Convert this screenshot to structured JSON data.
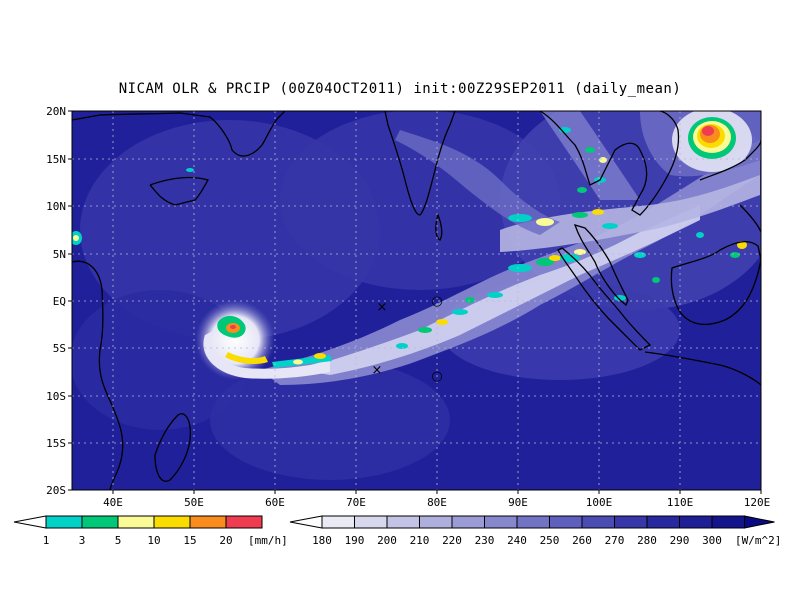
{
  "title": "NICAM OLR & PRCIP (00Z04OCT2011) init:00Z29SEP2011 (daily_mean)",
  "map": {
    "lon_range": [
      35,
      120
    ],
    "lat_range": [
      -20,
      20
    ],
    "grid": true,
    "lat_ticks": [
      "20N",
      "15N",
      "10N",
      "5N",
      "EQ",
      "5S",
      "10S",
      "15S",
      "20S"
    ],
    "lon_ticks": [
      "40E",
      "50E",
      "60E",
      "70E",
      "80E",
      "90E",
      "100E",
      "110E",
      "120E"
    ],
    "markers": [
      {
        "symbol": "×",
        "lon": 73.0,
        "lat": -0.7
      },
      {
        "symbol": "×",
        "lon": 72.5,
        "lat": -7.3
      },
      {
        "symbol": "○",
        "lon": 80.0,
        "lat": 0.0
      },
      {
        "symbol": "○",
        "lon": 80.0,
        "lat": -8.0
      }
    ]
  },
  "precip_colorbar": {
    "unit": "[mm/h]",
    "labels": [
      "1",
      "3",
      "5",
      "10",
      "15",
      "20"
    ],
    "colors": [
      "#00d2c8",
      "#00c878",
      "#fafa96",
      "#fadc00",
      "#fa8c1e",
      "#f03c50"
    ]
  },
  "olr_colorbar": {
    "unit": "[W/m^2]",
    "labels": [
      "180",
      "190",
      "200",
      "210",
      "220",
      "230",
      "240",
      "250",
      "260",
      "270",
      "280",
      "290",
      "300"
    ],
    "colors": [
      "#eaeaf5",
      "#d7d7ee",
      "#c3c3e6",
      "#afafde",
      "#9b9bd6",
      "#8787ce",
      "#7373c6",
      "#5f5fbe",
      "#4b4bb4",
      "#3737aa",
      "#2828a0",
      "#1e1e96",
      "#14148c",
      "#0a0a82"
    ]
  }
}
